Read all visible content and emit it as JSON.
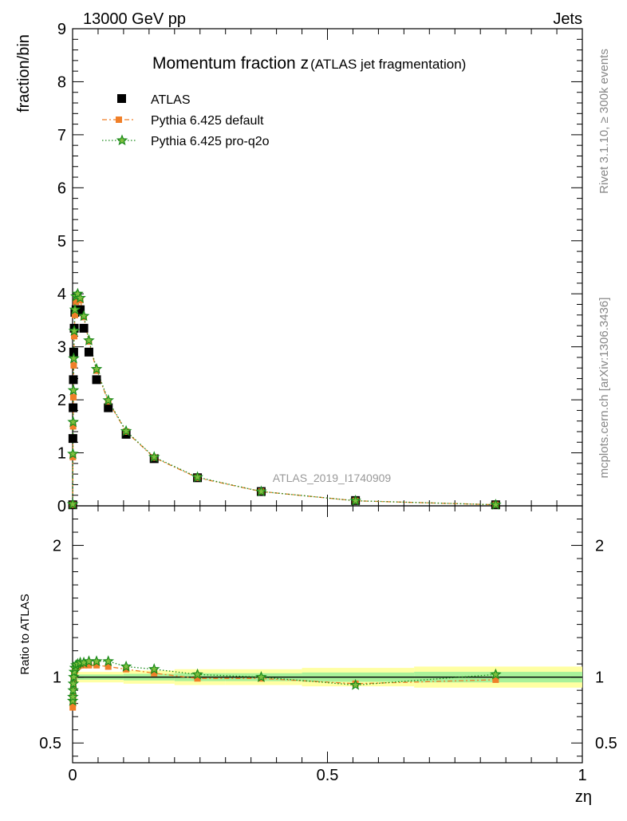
{
  "header": {
    "left": "13000 GeV pp",
    "right": "Jets"
  },
  "side_labels": {
    "rivet": "Rivet 3.1.10, ≥ 300k events",
    "mcplots": "mcplots.cern.ch [arXiv:1306.3436]"
  },
  "chart_data": [
    {
      "type": "scatter",
      "panel": "main",
      "title_main": "Momentum fraction z",
      "title_sub": "(ATLAS jet fragmentation)",
      "ylabel": "fraction/bin",
      "xlabel": "zη",
      "watermark": "ATLAS_2019_I1740909",
      "xlim": [
        0,
        1
      ],
      "ylim": [
        0,
        9
      ],
      "x_ticks": [
        "0",
        "0.5",
        "1"
      ],
      "y_ticks": [
        "0",
        "1",
        "2",
        "3",
        "4",
        "5",
        "6",
        "7",
        "8",
        "9"
      ],
      "legend_position": "top-left",
      "series": [
        {
          "name": "ATLAS",
          "color": "#000000",
          "marker": "square",
          "x": [
            0.0003,
            0.0006,
            0.001,
            0.0015,
            0.0022,
            0.0032,
            0.0046,
            0.0068,
            0.01,
            0.015,
            0.022,
            0.032,
            0.047,
            0.07,
            0.105,
            0.16,
            0.245,
            0.37,
            0.555,
            0.83
          ],
          "y": [
            0.02,
            1.27,
            1.85,
            2.38,
            2.9,
            3.35,
            3.65,
            3.7,
            3.68,
            3.7,
            3.35,
            2.9,
            2.38,
            1.85,
            1.35,
            0.89,
            0.53,
            0.27,
            0.1,
            0.02
          ]
        },
        {
          "name": "Pythia 6.425 default",
          "color": "#f07f28",
          "marker": "square",
          "line": "dash-dot",
          "x": [
            0.0003,
            0.0006,
            0.001,
            0.0015,
            0.0022,
            0.0032,
            0.0046,
            0.0068,
            0.01,
            0.015,
            0.022,
            0.032,
            0.047,
            0.07,
            0.105,
            0.16,
            0.245,
            0.37,
            0.555,
            0.83
          ],
          "y": [
            0.02,
            0.92,
            1.5,
            2.05,
            2.65,
            3.2,
            3.6,
            3.85,
            3.9,
            3.88,
            3.56,
            3.1,
            2.55,
            1.97,
            1.4,
            0.91,
            0.53,
            0.27,
            0.095,
            0.02
          ]
        },
        {
          "name": "Pythia 6.425 pro-q2o",
          "color": "#1a8a1a",
          "marker": "star",
          "line": "dotted",
          "x": [
            0.0003,
            0.0006,
            0.001,
            0.0015,
            0.0022,
            0.0032,
            0.0046,
            0.0068,
            0.01,
            0.015,
            0.022,
            0.032,
            0.047,
            0.07,
            0.105,
            0.16,
            0.245,
            0.37,
            0.555,
            0.83
          ],
          "y": [
            0.03,
            0.98,
            1.58,
            2.18,
            2.78,
            3.3,
            3.7,
            3.95,
            4.0,
            3.92,
            3.58,
            3.12,
            2.58,
            1.99,
            1.41,
            0.92,
            0.54,
            0.27,
            0.096,
            0.021
          ]
        }
      ]
    },
    {
      "type": "scatter",
      "panel": "ratio",
      "ylabel": "Ratio to ATLAS",
      "xlim": [
        0,
        1
      ],
      "ylim": [
        0.35,
        2.3
      ],
      "y_ticks": [
        "0.5",
        "1",
        "2"
      ],
      "band_edges": [
        0,
        0.1,
        0.2,
        0.3,
        0.45,
        0.67,
        1.0
      ],
      "band_inner": [
        0.02,
        0.025,
        0.03,
        0.03,
        0.035,
        0.04
      ],
      "band_outer": [
        0.04,
        0.05,
        0.06,
        0.06,
        0.07,
        0.08
      ],
      "series": [
        {
          "name": "Pythia 6.425 default",
          "color": "#f07f28",
          "x": [
            0.0003,
            0.0006,
            0.001,
            0.0015,
            0.0022,
            0.0032,
            0.0046,
            0.0068,
            0.01,
            0.015,
            0.022,
            0.032,
            0.047,
            0.07,
            0.105,
            0.16,
            0.245,
            0.37,
            0.555,
            0.83
          ],
          "y": [
            0.77,
            0.8,
            0.86,
            0.92,
            0.98,
            1.02,
            1.05,
            1.07,
            1.08,
            1.09,
            1.09,
            1.09,
            1.09,
            1.08,
            1.06,
            1.03,
            0.99,
            0.99,
            0.95,
            0.98
          ]
        },
        {
          "name": "Pythia 6.425 pro-q2o",
          "color": "#1a8a1a",
          "x": [
            0.0003,
            0.0006,
            0.001,
            0.0015,
            0.0022,
            0.0032,
            0.0046,
            0.0068,
            0.01,
            0.015,
            0.022,
            0.032,
            0.047,
            0.07,
            0.105,
            0.16,
            0.245,
            0.37,
            0.555,
            0.83
          ],
          "y": [
            0.82,
            0.85,
            0.9,
            0.95,
            1.0,
            1.04,
            1.07,
            1.09,
            1.1,
            1.11,
            1.11,
            1.12,
            1.12,
            1.12,
            1.08,
            1.06,
            1.02,
            1.0,
            0.94,
            1.02
          ]
        }
      ]
    }
  ]
}
